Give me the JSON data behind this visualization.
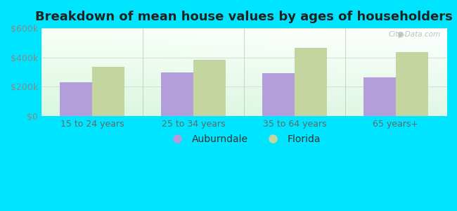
{
  "title": "Breakdown of mean house values by ages of householders",
  "categories": [
    "15 to 24 years",
    "25 to 34 years",
    "35 to 64 years",
    "65 years+"
  ],
  "auburndale_values": [
    230000,
    300000,
    295000,
    265000
  ],
  "florida_values": [
    335000,
    385000,
    465000,
    435000
  ],
  "auburndale_color": "#b39ddb",
  "florida_color": "#c5d5a0",
  "background_color": "#00e5ff",
  "ylim": [
    0,
    600000
  ],
  "yticks": [
    0,
    200000,
    400000,
    600000
  ],
  "ytick_labels": [
    "$0",
    "$200k",
    "$400k",
    "$600k"
  ],
  "legend_auburndale": "Auburndale",
  "legend_florida": "Florida",
  "title_fontsize": 13,
  "tick_fontsize": 9,
  "legend_fontsize": 10,
  "bar_width": 0.32,
  "watermark": "City-Data.com"
}
